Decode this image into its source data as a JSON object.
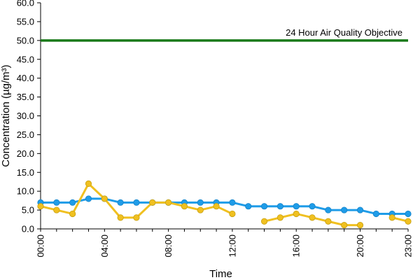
{
  "chart_data": {
    "type": "line",
    "xlabel": "Time",
    "ylabel": "Concentration (µg/m³)",
    "ylim": [
      0,
      60
    ],
    "y_ticks": [
      "0.0",
      "5.0",
      "10.0",
      "15.0",
      "20.0",
      "25.0",
      "30.0",
      "35.0",
      "40.0",
      "45.0",
      "50.0",
      "55.0",
      "60.0"
    ],
    "x_tick_labels": [
      "00:00",
      "04:00",
      "08:00",
      "12:00",
      "16:00",
      "20:00",
      "23:00"
    ],
    "x_tick_hours": [
      0,
      4,
      8,
      12,
      16,
      20,
      23
    ],
    "x_hours": [
      0,
      1,
      2,
      3,
      4,
      5,
      6,
      7,
      8,
      9,
      10,
      11,
      12,
      13,
      14,
      15,
      16,
      17,
      18,
      19,
      20,
      21,
      22,
      23
    ],
    "series": [
      {
        "color": "#1f9ce8",
        "values": [
          7,
          7,
          7,
          8,
          8,
          7,
          7,
          7,
          7,
          7,
          7,
          7,
          7,
          6,
          6,
          6,
          6,
          6,
          5,
          5,
          5,
          4,
          4,
          4
        ]
      },
      {
        "color": "#f0c020",
        "values": [
          6,
          5,
          4,
          12,
          8,
          3,
          3,
          7,
          7,
          6,
          5,
          6,
          4,
          null,
          2,
          3,
          4,
          3,
          2,
          1,
          1,
          null,
          3,
          2
        ]
      }
    ],
    "annotation": {
      "label": "24 Hour Air Quality Objective",
      "value": 50,
      "color": "#1a7a1a"
    },
    "grid": false,
    "legend": "none"
  }
}
